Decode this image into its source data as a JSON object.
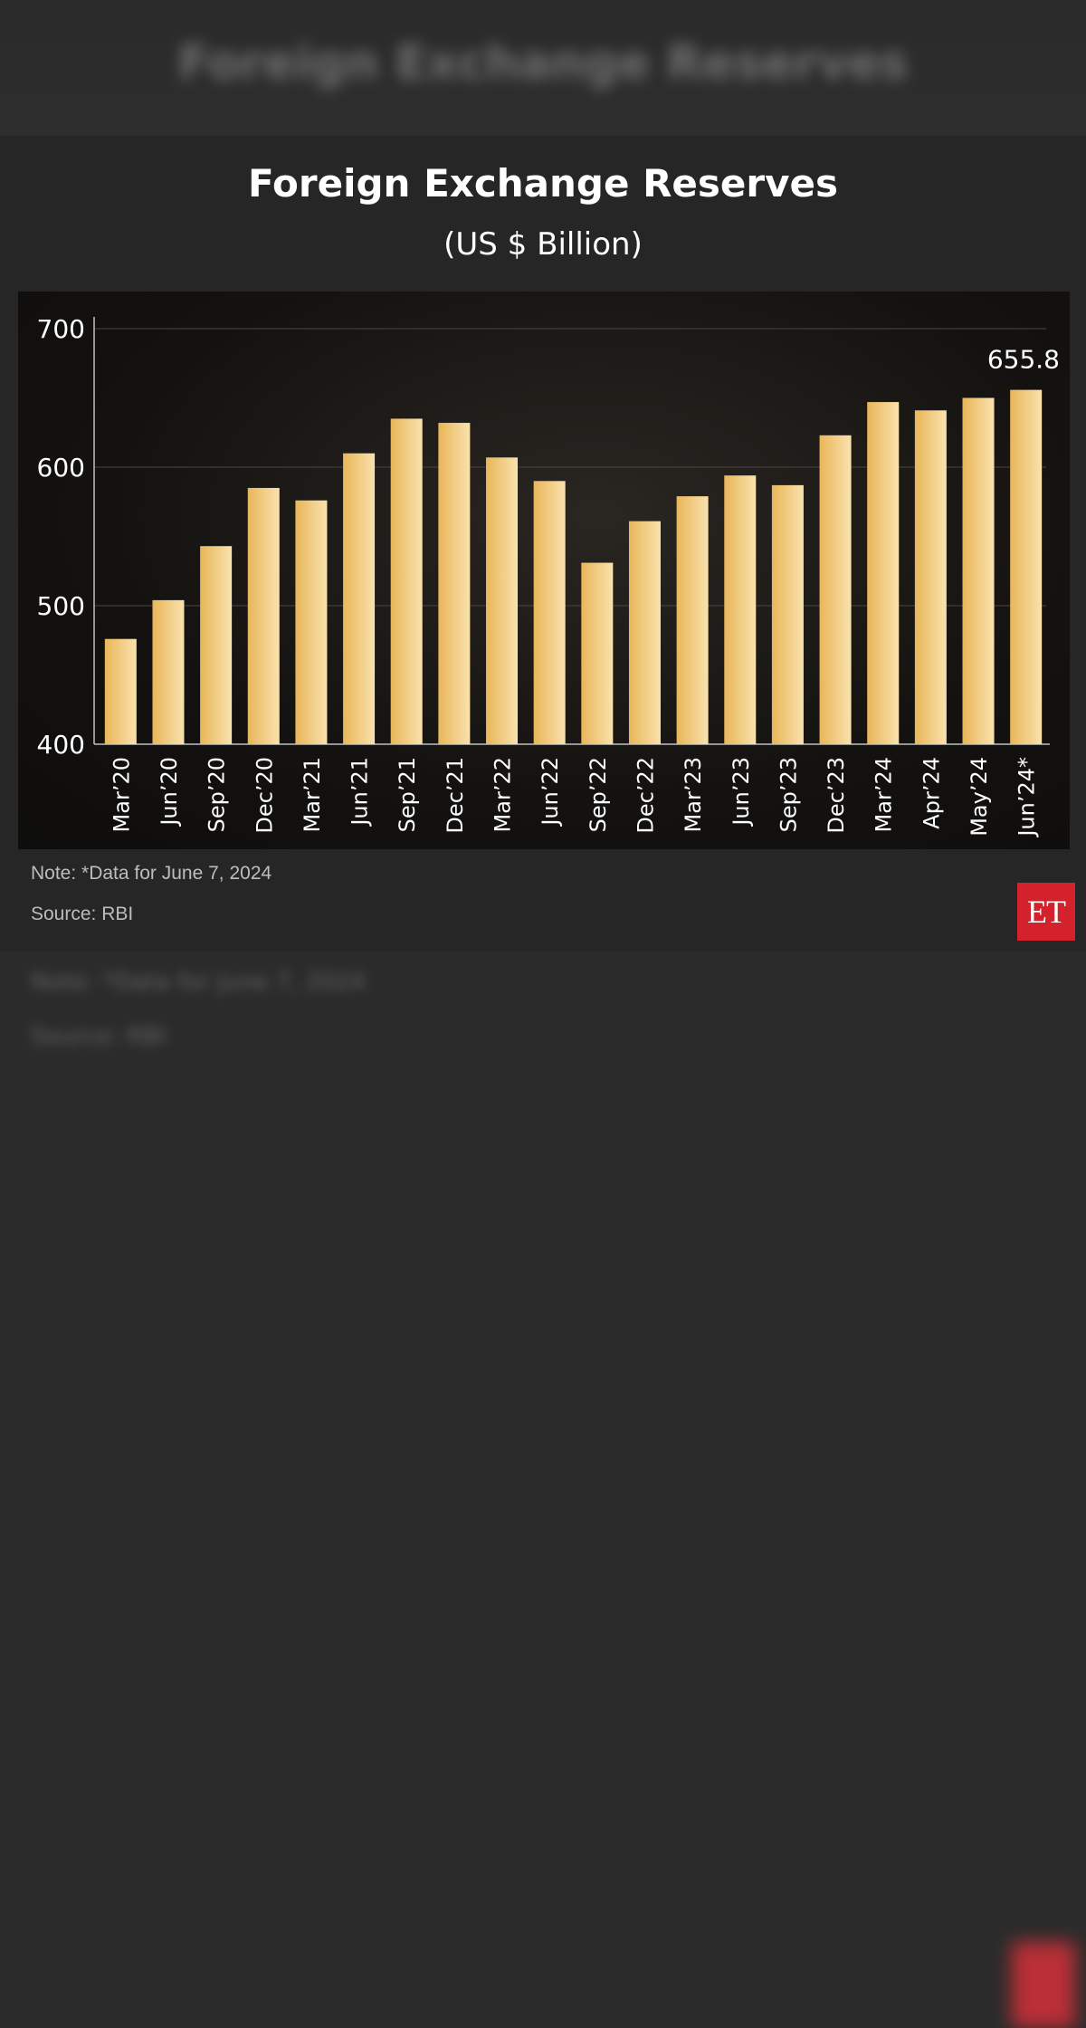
{
  "header": {
    "title": "Foreign Exchange Reserves",
    "subtitle": "(US $ Billion)"
  },
  "footer": {
    "note": "Note: *Data for June 7, 2024",
    "source": "Source: RBI",
    "logo": "ET"
  },
  "colors": {
    "bar_light": "#f8dda0",
    "bar_dark": "#e9b659",
    "background": "#2b2b2b",
    "logo_red": "#d3222b"
  },
  "chart_data": {
    "type": "bar",
    "title": "Foreign Exchange Reserves",
    "subtitle": "(US $ Billion)",
    "categories": [
      "Mar’20",
      "Jun’20",
      "Sep’20",
      "Dec’20",
      "Mar’21",
      "Jun’21",
      "Sep’21",
      "Dec’21",
      "Mar’22",
      "Jun’22",
      "Sep’22",
      "Dec’22",
      "Mar’23",
      "Jun’23",
      "Sep’23",
      "Dec’23",
      "Mar’24",
      "Apr’24",
      "May’24",
      "Jun’24*"
    ],
    "values": [
      476,
      504,
      543,
      585,
      576,
      610,
      635,
      632,
      607,
      590,
      531,
      561,
      579,
      594,
      587,
      623,
      647,
      641,
      650,
      655.8
    ],
    "ylim": [
      400,
      700
    ],
    "yticks": [
      400,
      500,
      600,
      700
    ],
    "data_labels": [
      {
        "index": 19,
        "text": "655.8"
      }
    ],
    "grid": true
  }
}
